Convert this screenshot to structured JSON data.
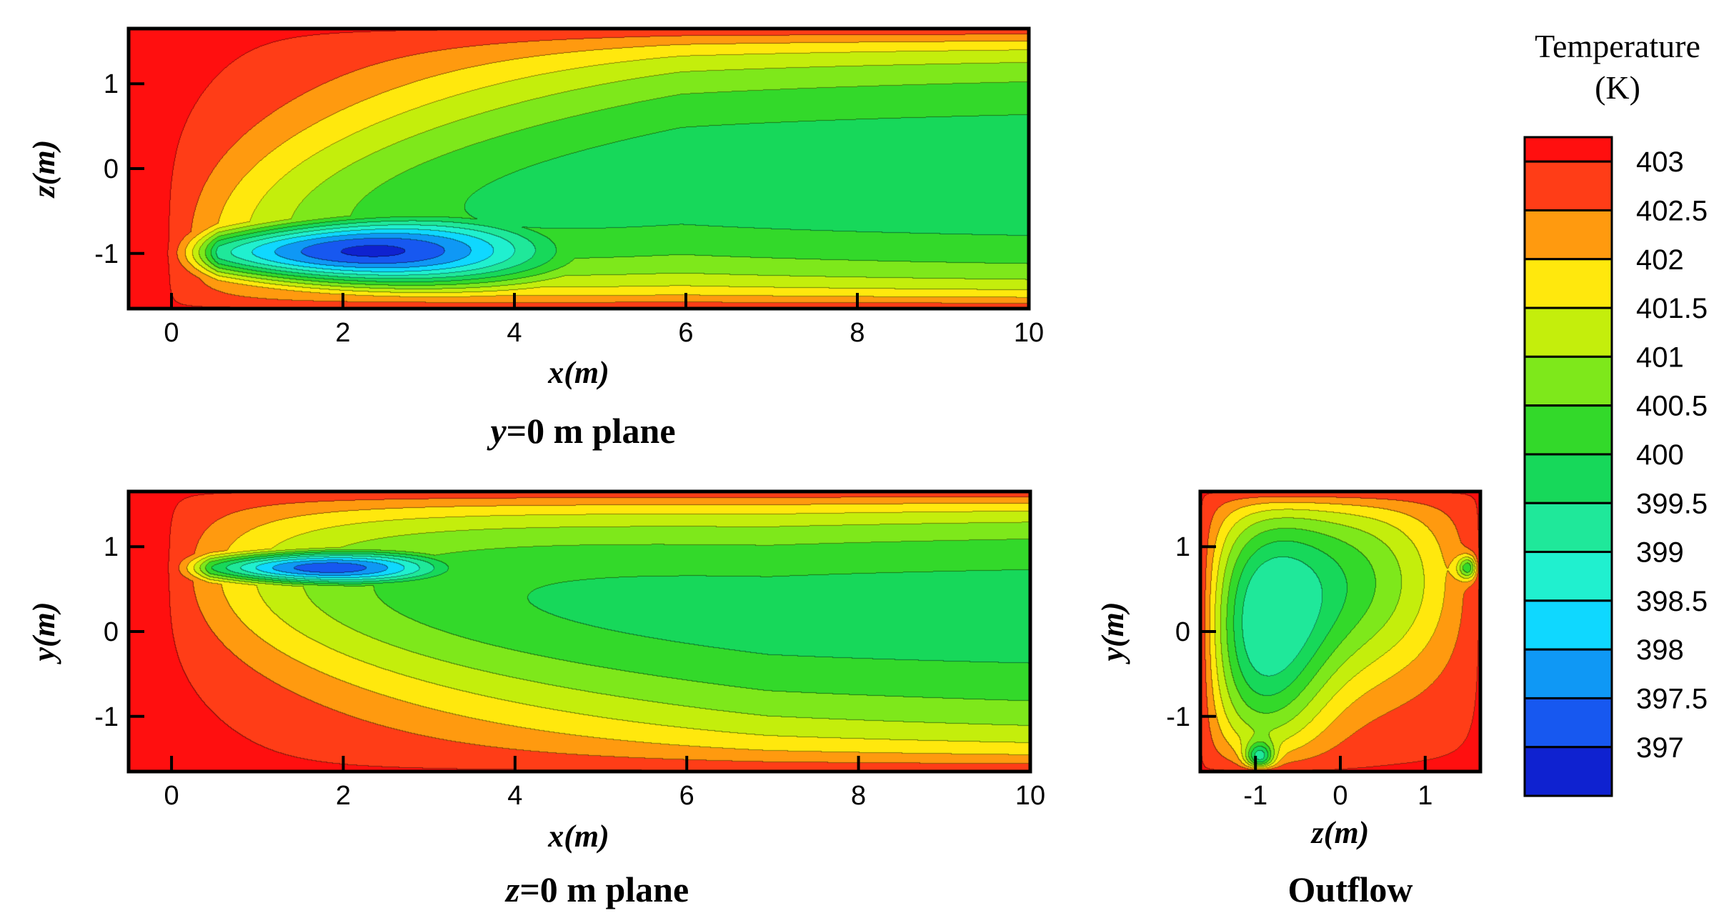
{
  "chart_data": [
    {
      "type": "heatmap",
      "title": "y=0 m plane",
      "title_italic_part": "y",
      "title_rest": "=0 m plane",
      "xlabel": "x(m)",
      "ylabel": "z(m)",
      "xlim": [
        -0.5,
        10
      ],
      "ylim": [
        -1.65,
        1.65
      ],
      "xticks": [
        "0",
        "2",
        "4",
        "6",
        "8",
        "10"
      ],
      "xtick_values": [
        0,
        2,
        4,
        6,
        8,
        10
      ],
      "yticks": [
        "-1",
        "0",
        "1"
      ],
      "ytick_values": [
        -1,
        0,
        1
      ],
      "field": "temperature",
      "cold_core": {
        "x": 2.2,
        "coord": -1.0,
        "min_temperature": 397
      },
      "hot_wall_temperature": 403.3
    },
    {
      "type": "heatmap",
      "title": "z=0 m plane",
      "title_italic_part": "z",
      "title_rest": "=0 m plane",
      "xlabel": "x(m)",
      "ylabel": "y(m)",
      "xlim": [
        -0.5,
        10
      ],
      "ylim": [
        -1.65,
        1.65
      ],
      "xticks": [
        "0",
        "2",
        "4",
        "6",
        "8",
        "10"
      ],
      "xtick_values": [
        0,
        2,
        4,
        6,
        8,
        10
      ],
      "yticks": [
        "-1",
        "0",
        "1"
      ],
      "ytick_values": [
        -1,
        0,
        1
      ],
      "field": "temperature",
      "cold_core": {
        "x": 1.8,
        "coord": 0.75,
        "min_temperature": 397.3
      },
      "hot_wall_temperature": 403.3
    },
    {
      "type": "heatmap",
      "title": "Outflow",
      "xlabel": "z(m)",
      "ylabel": "y(m)",
      "xlim": [
        -1.65,
        1.65
      ],
      "ylim": [
        -1.65,
        1.65
      ],
      "xticks": [
        "-1",
        "0",
        "1"
      ],
      "xtick_values": [
        -1,
        0,
        1
      ],
      "yticks": [
        "-1",
        "0",
        "1"
      ],
      "ytick_values": [
        -1,
        0,
        1
      ],
      "field": "temperature",
      "hot_wall_temperature": 403.3
    }
  ],
  "legend": {
    "title_line1": "Temperature",
    "title_line2": "(K)",
    "levels": [
      {
        "label": "403",
        "value": 403,
        "color": "#ff3d17"
      },
      {
        "label": "402.5",
        "value": 402.5,
        "color": "#ff9a0f"
      },
      {
        "label": "402",
        "value": 402,
        "color": "#ffe80d"
      },
      {
        "label": "401.5",
        "value": 401.5,
        "color": "#c4ee0c"
      },
      {
        "label": "401",
        "value": 401,
        "color": "#7ee81b"
      },
      {
        "label": "400.5",
        "value": 400.5,
        "color": "#33d92a"
      },
      {
        "label": "400",
        "value": 400,
        "color": "#17d85a"
      },
      {
        "label": "399.5",
        "value": 399.5,
        "color": "#1fe89a"
      },
      {
        "label": "399",
        "value": 399,
        "color": "#20f0cf"
      },
      {
        "label": "398.5",
        "value": 398.5,
        "color": "#0fd8ff"
      },
      {
        "label": "398",
        "value": 398,
        "color": "#0f98f5"
      },
      {
        "label": "397.5",
        "value": 397.5,
        "color": "#1758f0"
      },
      {
        "label": "397",
        "value": 397,
        "color": "#0f22d0"
      }
    ],
    "top_color": "#ff0f0f"
  }
}
